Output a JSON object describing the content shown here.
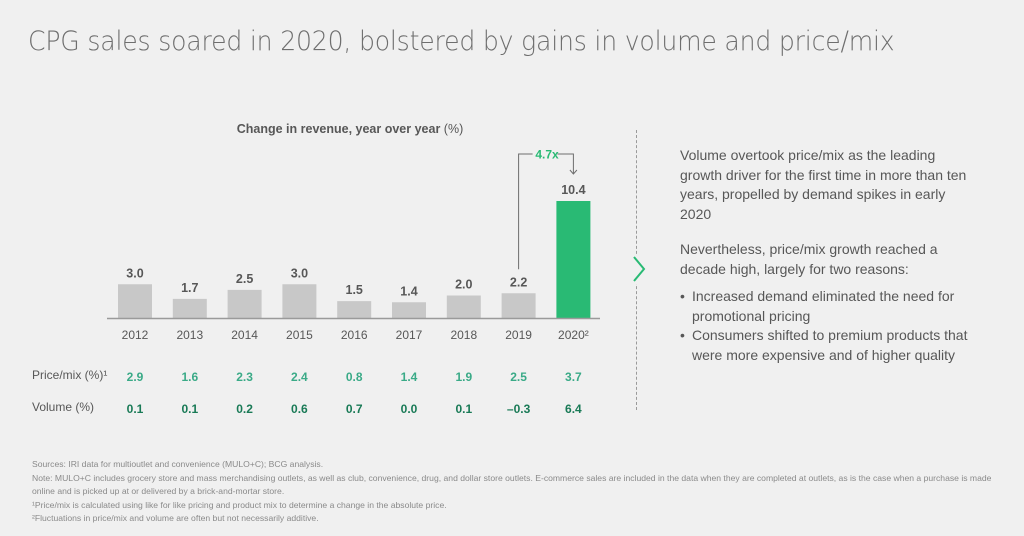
{
  "header": {
    "title": "CPG sales soared in 2020, bolstered by gains in volume and price/mix"
  },
  "chart_data": {
    "type": "bar",
    "title": "Change in revenue, year over year",
    "title_unit": "(%)",
    "categories": [
      "2012",
      "2013",
      "2014",
      "2015",
      "2016",
      "2017",
      "2018",
      "2019",
      "2020²"
    ],
    "values": [
      3.0,
      1.7,
      2.5,
      3.0,
      1.5,
      1.4,
      2.0,
      2.2,
      10.4
    ],
    "value_labels": [
      "3.0",
      "1.7",
      "2.5",
      "3.0",
      "1.5",
      "1.4",
      "2.0",
      "2.2",
      "10.4"
    ],
    "highlight_index": 8,
    "colors": {
      "default": "#c8c8c8",
      "highlight": "#29ba74",
      "accent_text": "#3aaa87",
      "dark_text": "#197a56"
    },
    "ylim": [
      0,
      10.4
    ],
    "annotation": {
      "label": "4.7x",
      "from": "2019",
      "to": "2020²"
    },
    "xlabel": "",
    "ylabel": "",
    "grid": false,
    "table_rows": [
      {
        "label": "Price/mix (%)¹",
        "values": [
          "2.9",
          "1.6",
          "2.3",
          "2.4",
          "0.8",
          "1.4",
          "1.9",
          "2.5",
          "3.7"
        ]
      },
      {
        "label": "Volume (%)",
        "values": [
          "0.1",
          "0.1",
          "0.2",
          "0.6",
          "0.7",
          "0.0",
          "0.1",
          "–0.3",
          "6.4"
        ]
      }
    ]
  },
  "panel": {
    "paragraph1": "Volume overtook price/mix as the leading growth driver for the first time in more than ten years, propelled by demand spikes in early 2020",
    "paragraph2": "Nevertheless, price/mix growth reached a decade high, largely for two reasons:",
    "bullets": [
      "Increased demand eliminated the need for promotional pricing",
      "Consumers shifted to premium products that were more expensive and of higher quality"
    ]
  },
  "notes": {
    "sources": "Sources: IRI data for multioutlet and convenience (MULO+C); BCG analysis.",
    "note": "Note: MULO+C includes grocery store and mass merchandising outlets, as well as club, convenience, drug, and dollar store outlets. E-commerce sales are included in the data when they are completed at outlets, as is the case when a purchase is made online and is picked up at or delivered by a brick-and-mortar store.",
    "footnote1": "¹Price/mix is calculated using like for like pricing and product mix to determine a change in the absolute price.",
    "footnote2": "²Fluctuations in price/mix and volume are often but not necessarily additive."
  }
}
